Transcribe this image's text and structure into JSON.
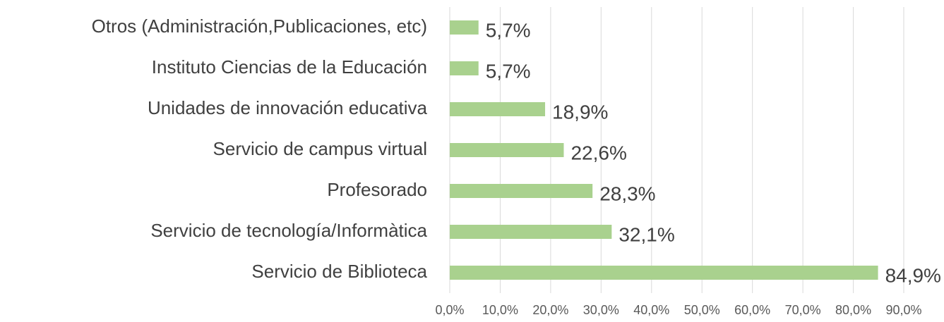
{
  "chart_data": {
    "type": "bar",
    "orientation": "horizontal",
    "categories": [
      "Otros (Administración,Publicaciones, etc)",
      "Instituto Ciencias de la Educación",
      "Unidades de innovación educativa",
      "Servicio de campus virtual",
      "Profesorado",
      "Servicio de tecnología/Informàtica",
      "Servicio de Biblioteca"
    ],
    "values": [
      5.7,
      5.7,
      18.9,
      22.6,
      28.3,
      32.1,
      84.9
    ],
    "value_labels": [
      "5,7%",
      "5,7%",
      "18,9%",
      "22,6%",
      "28,3%",
      "32,1%",
      "84,9%"
    ],
    "color": "#a9d18e",
    "xlim": [
      0,
      90
    ],
    "xticks": [
      {
        "value": 0,
        "label": "0,0%"
      },
      {
        "value": 10,
        "label": "10,0%"
      },
      {
        "value": 20,
        "label": "20,0%"
      },
      {
        "value": 30,
        "label": "30,0%"
      },
      {
        "value": 40,
        "label": "40,0%"
      },
      {
        "value": 50,
        "label": "50,0%"
      },
      {
        "value": 60,
        "label": "60,0%"
      },
      {
        "value": 70,
        "label": "70,0%"
      },
      {
        "value": 80,
        "label": "80,0%"
      },
      {
        "value": 90,
        "label": "90,0%"
      }
    ],
    "grid": true
  }
}
